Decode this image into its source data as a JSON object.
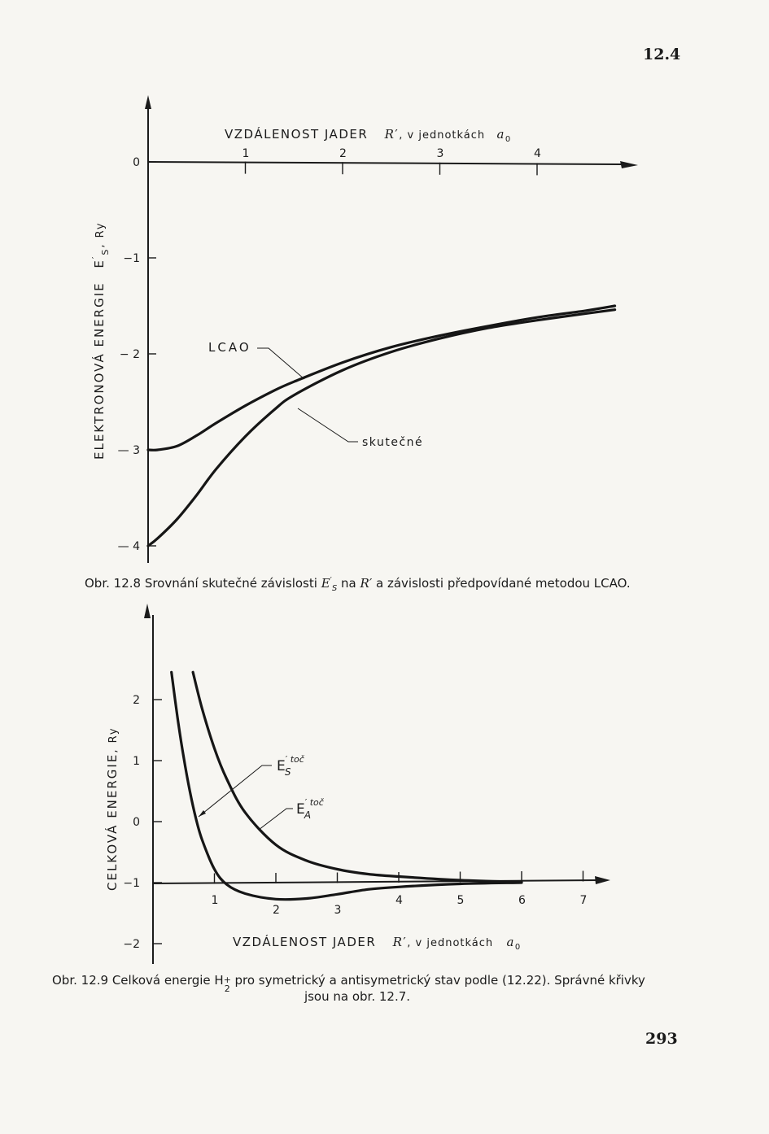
{
  "page": {
    "section": "12.4",
    "number": "293"
  },
  "figure1": {
    "caption": {
      "prefix": "Obr. 12.8 Srovnání skutečné závislosti ",
      "sym_main": "E",
      "sym_sup": "′",
      "sym_sub": "S",
      "middle": " na ",
      "r_sym": "R′",
      "suffix": " a závislosti předpovídané metodou LCAO."
    }
  },
  "figure2": {
    "caption": {
      "prefix": "Obr. 12.9 Celková energie H",
      "sub": "2",
      "sup": "+",
      "line1_rest": " pro symetrický a antisymetrický stav podle (12.22). Správné křivky",
      "line2": "jsou na obr. 12.7."
    }
  },
  "chart_data": [
    {
      "type": "line",
      "xlabel": {
        "main": "VZDÁLENOST JADER",
        "sym": "R",
        "prime": "′",
        "rest": ", v jednotkách",
        "unit": "a",
        "unit_sub": "0"
      },
      "ylabel": {
        "main": "ELEKTRONOVÁ ENERGIE",
        "sym": "E",
        "sub": "S",
        "prime": "′",
        "rest": ", Ry"
      },
      "xlim": [
        0,
        5
      ],
      "ylim": [
        -4.1,
        0.8
      ],
      "x_ticks": [
        1,
        2,
        3,
        4
      ],
      "y_ticks": [
        {
          "v": 0,
          "label": "0"
        },
        {
          "v": -1,
          "label": "−1"
        },
        {
          "v": -2,
          "label": "− 2"
        },
        {
          "v": -3,
          "label": "— 3"
        },
        {
          "v": -4,
          "label": "— 4"
        }
      ],
      "series": [
        {
          "name": "LCAO",
          "x": [
            0.0,
            0.1,
            0.3,
            0.5,
            0.7,
            1.0,
            1.3,
            1.5,
            2.0,
            2.5,
            3.0,
            3.5,
            4.0,
            4.5,
            4.8
          ],
          "y": [
            -3.0,
            -3.0,
            -2.96,
            -2.85,
            -2.72,
            -2.54,
            -2.38,
            -2.29,
            -2.09,
            -1.93,
            -1.81,
            -1.71,
            -1.62,
            -1.55,
            -1.5
          ]
        },
        {
          "name": "skutečné",
          "x": [
            0.0,
            0.1,
            0.3,
            0.5,
            0.7,
            1.0,
            1.3,
            1.5,
            2.0,
            2.5,
            3.0,
            3.5,
            4.0,
            4.5,
            4.8
          ],
          "y": [
            -4.0,
            -3.92,
            -3.72,
            -3.47,
            -3.2,
            -2.86,
            -2.58,
            -2.43,
            -2.17,
            -1.98,
            -1.84,
            -1.73,
            -1.65,
            -1.58,
            -1.54
          ]
        }
      ]
    },
    {
      "type": "line",
      "xlabel": {
        "main": "VZDÁLENOST JADER",
        "sym": "R",
        "prime": "′",
        "rest": ", v jednotkách",
        "unit": "a",
        "unit_sub": "0"
      },
      "ylabel": {
        "main": "CELKOVÁ ENERGIE",
        "rest": ", Ry"
      },
      "xlim": [
        0,
        8.2
      ],
      "ylim": [
        -2.2,
        3.4
      ],
      "x_ticks": [
        1,
        2,
        3,
        4,
        5,
        6,
        7
      ],
      "y_ticks": [
        {
          "v": 2,
          "label": "2"
        },
        {
          "v": 1,
          "label": "1"
        },
        {
          "v": 0,
          "label": "0"
        },
        {
          "v": -1,
          "label": "−1"
        },
        {
          "v": -2,
          "label": "−2"
        }
      ],
      "series": [
        {
          "label_sym": "E",
          "label_sub": "S",
          "label_sup": "′ toč",
          "x": [
            0.3,
            0.4,
            0.5,
            0.6,
            0.7,
            0.8,
            1.0,
            1.2,
            1.5,
            2.0,
            2.5,
            3.0,
            3.5,
            4.0,
            5.0,
            6.0
          ],
          "y": [
            2.45,
            1.7,
            1.05,
            0.5,
            0.05,
            -0.3,
            -0.78,
            -1.03,
            -1.18,
            -1.27,
            -1.26,
            -1.19,
            -1.11,
            -1.07,
            -1.02,
            -1.0
          ]
        },
        {
          "label_sym": "E",
          "label_sub": "A",
          "label_sup": "′ toč",
          "x": [
            0.65,
            0.8,
            1.0,
            1.2,
            1.5,
            2.0,
            2.5,
            3.0,
            3.5,
            4.0,
            5.0,
            6.0
          ],
          "y": [
            2.45,
            1.85,
            1.2,
            0.7,
            0.15,
            -0.38,
            -0.64,
            -0.78,
            -0.86,
            -0.9,
            -0.96,
            -0.99
          ]
        }
      ]
    }
  ]
}
